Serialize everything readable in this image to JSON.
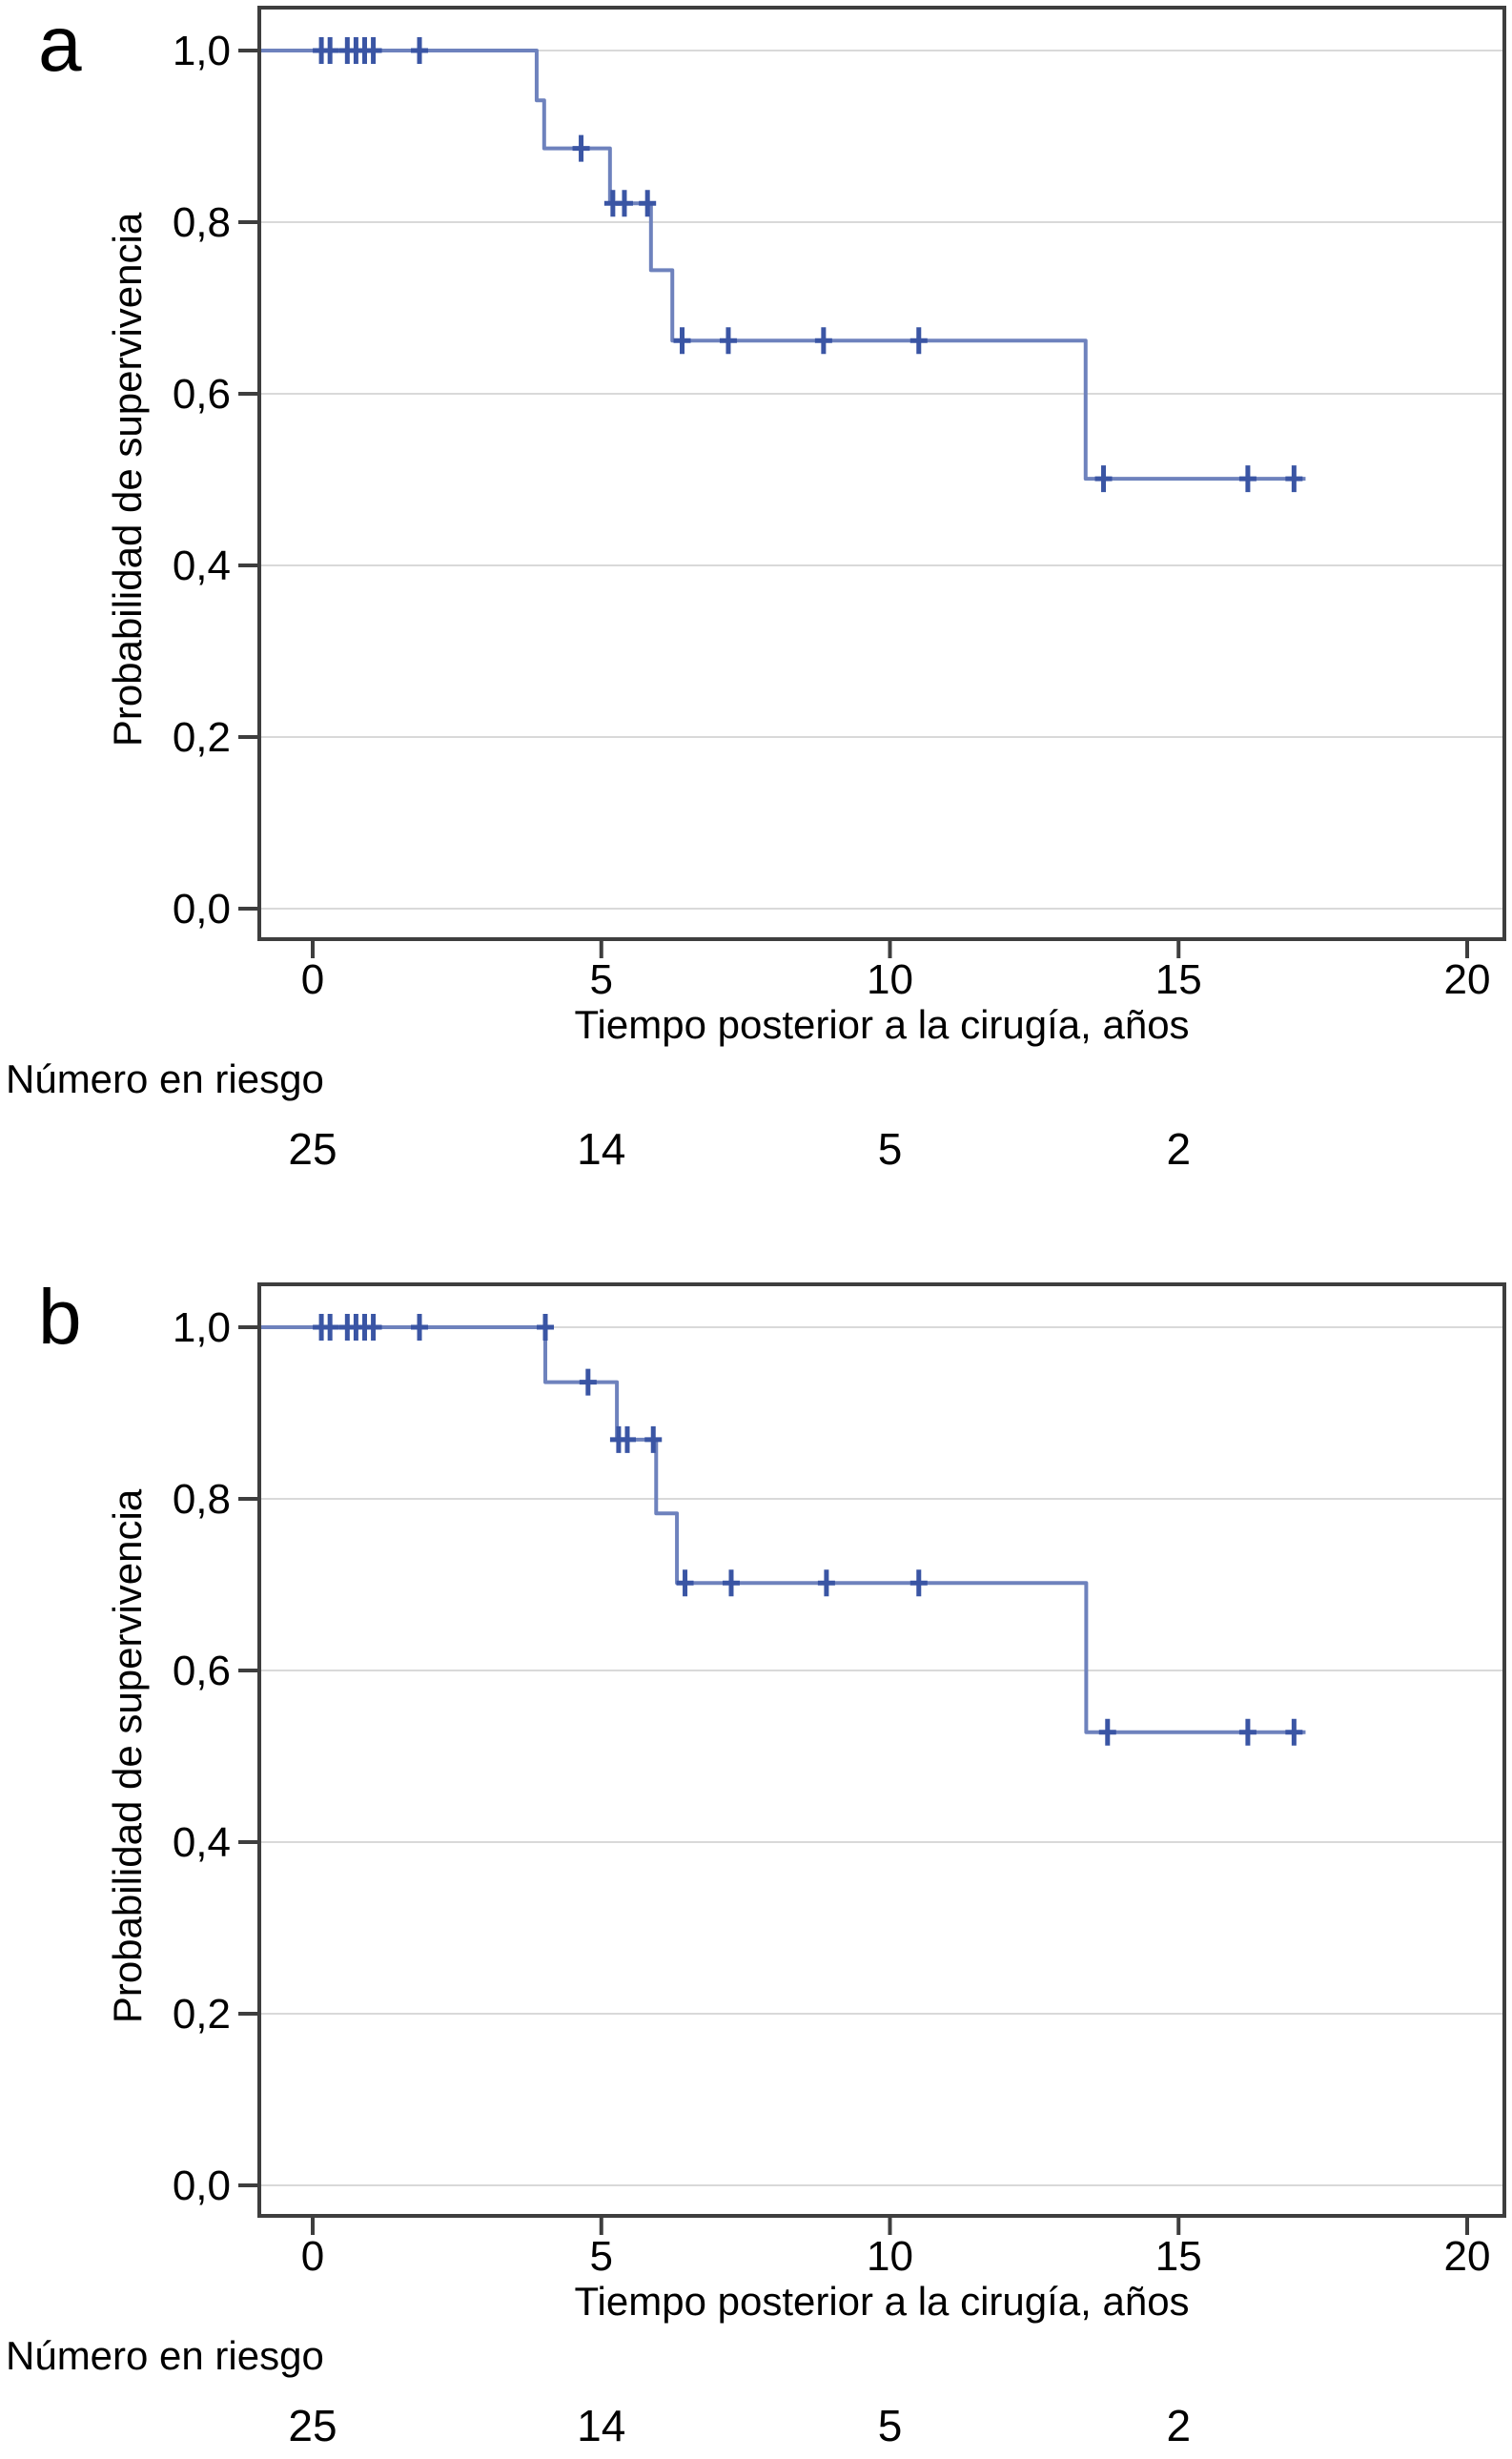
{
  "colors": {
    "curve": "#6e82bd",
    "censor": "#3a55a4",
    "axis_border": "#3e3e3e",
    "gridline": "#d9d9d9",
    "text": "#000000",
    "background": "#ffffff"
  },
  "chart_data": [
    {
      "type": "line",
      "subtype": "kaplan-meier-step",
      "panel_label": "a",
      "xlabel": "Tiempo posterior a la cirugía, años",
      "ylabel": "Probabilidad de supervivencia",
      "xlim": [
        0,
        20
      ],
      "ylim": [
        0.0,
        1.0
      ],
      "grid": true,
      "xticks": [
        0,
        5,
        10,
        15,
        20
      ],
      "xtick_labels": [
        "0",
        "5",
        "10",
        "15",
        "20"
      ],
      "ytick_values": [
        1.0,
        0.8,
        0.6,
        0.4,
        0.2,
        0.0
      ],
      "ytick_labels": [
        "1,0",
        "0,8",
        "0,6",
        "0,4",
        "0,2",
        "0,0"
      ],
      "steps": [
        [
          0,
          1.0
        ],
        [
          3.88,
          0.942
        ],
        [
          4.01,
          0.886
        ],
        [
          5.15,
          0.822
        ],
        [
          5.86,
          0.744
        ],
        [
          6.23,
          0.662
        ],
        [
          13.39,
          0.501
        ]
      ],
      "end_time": 17.2,
      "censor_marks": [
        [
          0.15,
          1.0
        ],
        [
          0.3,
          1.0
        ],
        [
          0.6,
          1.0
        ],
        [
          0.75,
          1.0
        ],
        [
          0.9,
          1.0
        ],
        [
          1.05,
          1.0
        ],
        [
          1.85,
          1.0
        ],
        [
          4.65,
          0.886
        ],
        [
          5.2,
          0.822
        ],
        [
          5.4,
          0.822
        ],
        [
          5.8,
          0.822
        ],
        [
          6.4,
          0.662
        ],
        [
          7.2,
          0.662
        ],
        [
          8.85,
          0.662
        ],
        [
          10.5,
          0.662
        ],
        [
          13.7,
          0.501
        ],
        [
          16.2,
          0.501
        ],
        [
          17.0,
          0.501
        ]
      ],
      "risk_label": "Número en riesgo",
      "risk_times": [
        0,
        5,
        10,
        15
      ],
      "risk_counts": [
        "25",
        "14",
        "5",
        "2"
      ]
    },
    {
      "type": "line",
      "subtype": "kaplan-meier-step",
      "panel_label": "b",
      "xlabel": "Tiempo posterior a la cirugía, años",
      "ylabel": "Probabilidad de supervivencia",
      "xlim": [
        0,
        20
      ],
      "ylim": [
        0.0,
        1.0
      ],
      "grid": true,
      "xticks": [
        0,
        5,
        10,
        15,
        20
      ],
      "xtick_labels": [
        "0",
        "5",
        "10",
        "15",
        "20"
      ],
      "ytick_values": [
        1.0,
        0.8,
        0.6,
        0.4,
        0.2,
        0.0
      ],
      "ytick_labels": [
        "1,0",
        "0,8",
        "0,6",
        "0,4",
        "0,2",
        "0,0"
      ],
      "steps": [
        [
          0,
          1.0
        ],
        [
          4.03,
          0.936
        ],
        [
          5.27,
          0.869
        ],
        [
          5.95,
          0.783
        ],
        [
          6.31,
          0.702
        ],
        [
          13.4,
          0.528
        ]
      ],
      "end_time": 17.2,
      "censor_marks": [
        [
          0.15,
          1.0
        ],
        [
          0.3,
          1.0
        ],
        [
          0.6,
          1.0
        ],
        [
          0.75,
          1.0
        ],
        [
          0.9,
          1.0
        ],
        [
          1.05,
          1.0
        ],
        [
          1.85,
          1.0
        ],
        [
          4.03,
          1.0
        ],
        [
          4.77,
          0.936
        ],
        [
          5.3,
          0.869
        ],
        [
          5.45,
          0.869
        ],
        [
          5.9,
          0.869
        ],
        [
          6.45,
          0.702
        ],
        [
          7.25,
          0.702
        ],
        [
          8.9,
          0.702
        ],
        [
          10.5,
          0.702
        ],
        [
          13.77,
          0.528
        ],
        [
          16.2,
          0.528
        ],
        [
          17.0,
          0.528
        ]
      ],
      "risk_label": "Número en riesgo",
      "risk_times": [
        0,
        5,
        10,
        15
      ],
      "risk_counts": [
        "25",
        "14",
        "5",
        "2"
      ]
    }
  ]
}
